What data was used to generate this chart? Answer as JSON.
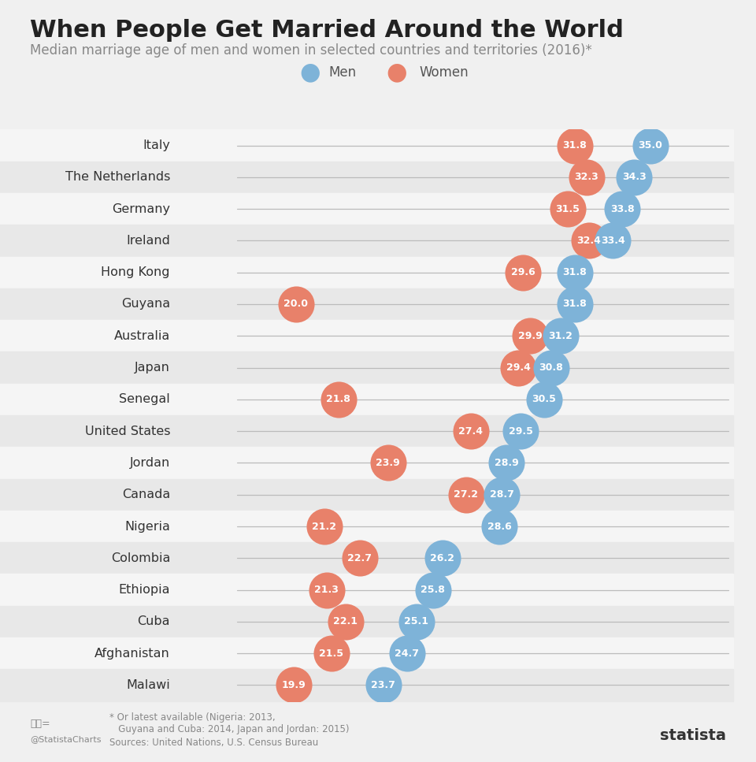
{
  "title": "When People Get Married Around the World",
  "subtitle": "Median marriage age of men and women in selected countries and territories (2016)*",
  "footnote": "* Or latest available (Nigeria: 2013,\n   Guyana and Cuba: 2014, Japan and Jordan: 2015)",
  "source": "Sources: United Nations, U.S. Census Bureau",
  "countries": [
    "Italy",
    "The Netherlands",
    "Germany",
    "Ireland",
    "Hong Kong",
    "Guyana",
    "Australia",
    "Japan",
    "Senegal",
    "United States",
    "Jordan",
    "Canada",
    "Nigeria",
    "Colombia",
    "Ethiopia",
    "Cuba",
    "Afghanistan",
    "Malawi"
  ],
  "women_ages": [
    31.8,
    32.3,
    31.5,
    32.4,
    29.6,
    20.0,
    29.9,
    29.4,
    21.8,
    27.4,
    23.9,
    27.2,
    21.2,
    22.7,
    21.3,
    22.1,
    21.5,
    19.9
  ],
  "men_ages": [
    35.0,
    34.3,
    33.8,
    33.4,
    31.8,
    31.8,
    31.2,
    30.8,
    30.5,
    29.5,
    28.9,
    28.7,
    28.6,
    26.2,
    25.8,
    25.1,
    24.7,
    23.7
  ],
  "men_color": "#7eb3d8",
  "women_color": "#e8816a",
  "line_color": "#bbbbbb",
  "fig_bg_color": "#f0f0f0",
  "row_alt_color": "#e8e8e8",
  "row_white_color": "#f5f5f5",
  "label_fontsize": 11.5,
  "value_fontsize": 9.0,
  "title_fontsize": 22,
  "subtitle_fontsize": 12,
  "legend_fontsize": 12,
  "x_min": 15,
  "x_max": 38.5
}
